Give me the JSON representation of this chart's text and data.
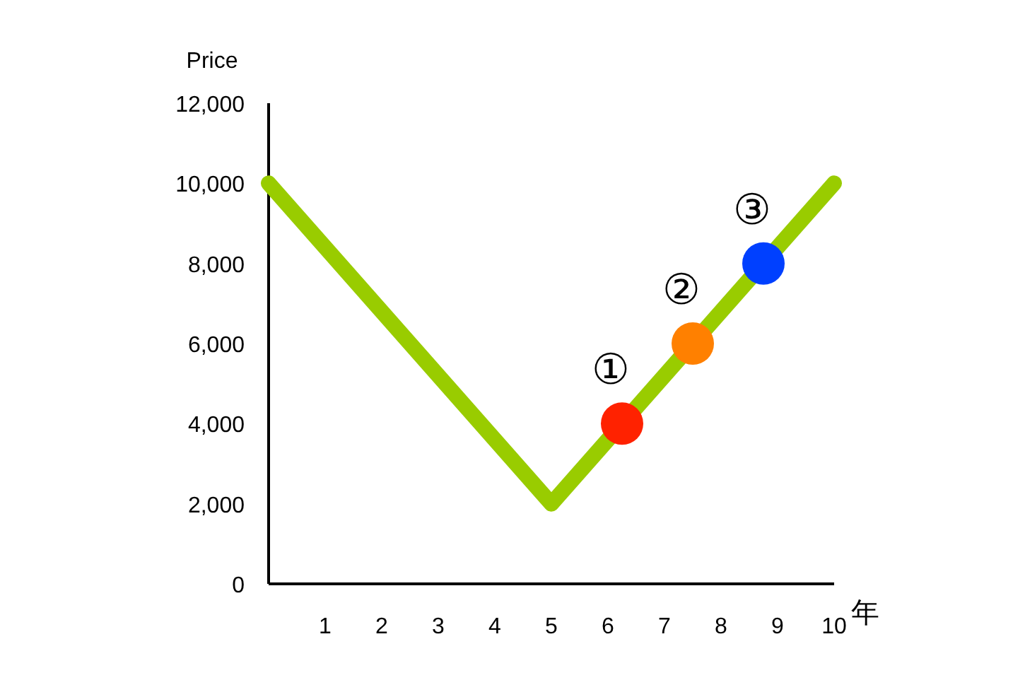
{
  "chart_data": {
    "type": "line",
    "xlabel": "年",
    "ylabel": "Price",
    "xlim": [
      0,
      10
    ],
    "ylim": [
      0,
      12000
    ],
    "xticks": [
      1,
      2,
      3,
      4,
      5,
      6,
      7,
      8,
      9,
      10
    ],
    "yticks": [
      0,
      {
        "value": 2000,
        "label": "2,000"
      },
      {
        "value": 4000,
        "label": "4,000"
      },
      {
        "value": 6000,
        "label": "6,000"
      },
      {
        "value": 8000,
        "label": "8,000"
      },
      {
        "value": 10000,
        "label": "10,000"
      },
      {
        "value": 12000,
        "label": "12,000"
      }
    ],
    "series": [
      {
        "color": "#99cc00",
        "x": [
          0,
          5,
          10
        ],
        "values": [
          10000,
          2000,
          10000
        ]
      },
      {
        "type": "scatter",
        "colors": [
          "#ff2200",
          "#ff8000",
          "#0040ff"
        ],
        "x": [
          6.25,
          7.5,
          8.75
        ],
        "values": [
          4000,
          6000,
          8000
        ]
      }
    ],
    "annotations": [
      {
        "text": "①",
        "x": 6.25,
        "y": 4000
      },
      {
        "text": "②",
        "x": 7.5,
        "y": 6000
      },
      {
        "text": "③",
        "x": 8.75,
        "y": 8000
      }
    ],
    "grid": false,
    "line_style": "solid"
  }
}
